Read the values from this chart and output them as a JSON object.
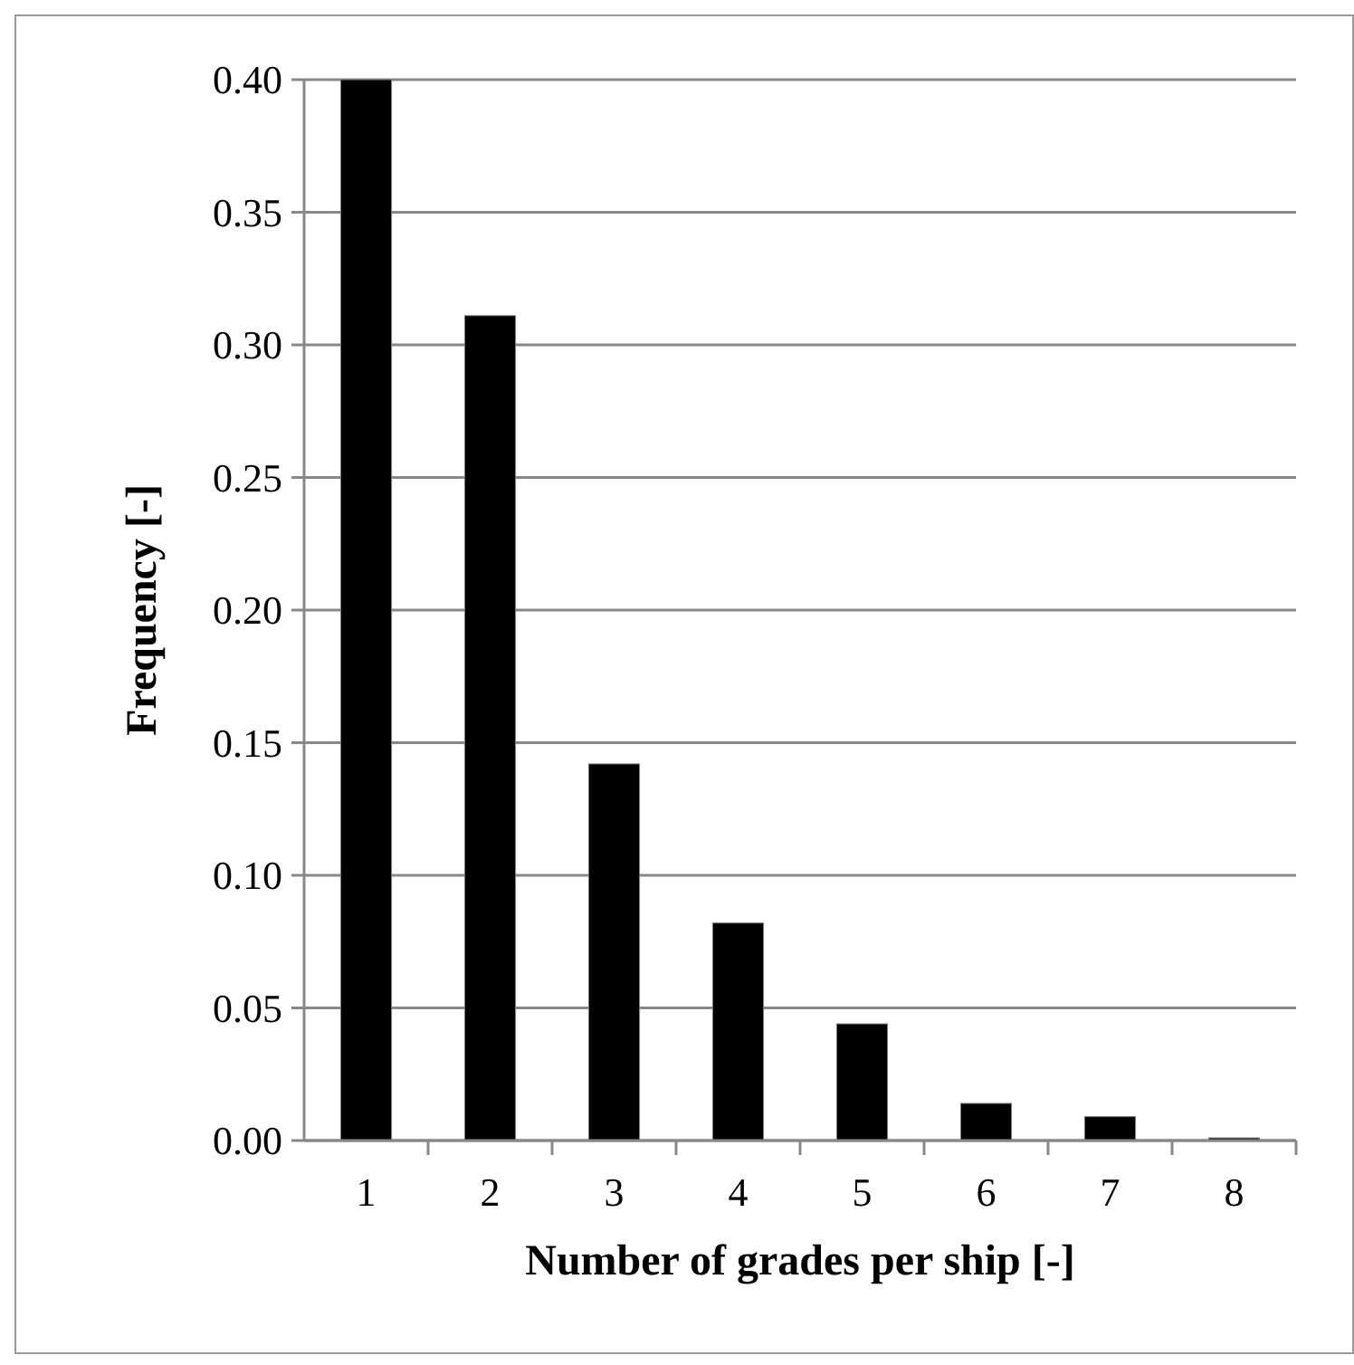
{
  "chart_data": {
    "type": "bar",
    "xlabel": "Number of grades per ship [-]",
    "ylabel": "Frequency [-]",
    "categories": [
      "1",
      "2",
      "3",
      "4",
      "5",
      "6",
      "7",
      "8"
    ],
    "values": [
      0.4,
      0.311,
      0.142,
      0.082,
      0.044,
      0.014,
      0.009,
      0.001
    ],
    "color": "#000000",
    "ylim": [
      0,
      0.4
    ],
    "yticks": [
      {
        "value": 0,
        "label": "0.00"
      },
      {
        "value": 0.05,
        "label": "0.05"
      },
      {
        "value": 0.1,
        "label": "0.10"
      },
      {
        "value": 0.15,
        "label": "0.15"
      },
      {
        "value": 0.2,
        "label": "0.20"
      },
      {
        "value": 0.25,
        "label": "0.25"
      },
      {
        "value": 0.3,
        "label": "0.30"
      },
      {
        "value": 0.35,
        "label": "0.35"
      },
      {
        "value": 0.4,
        "label": "0.40"
      }
    ],
    "grid": "y"
  }
}
